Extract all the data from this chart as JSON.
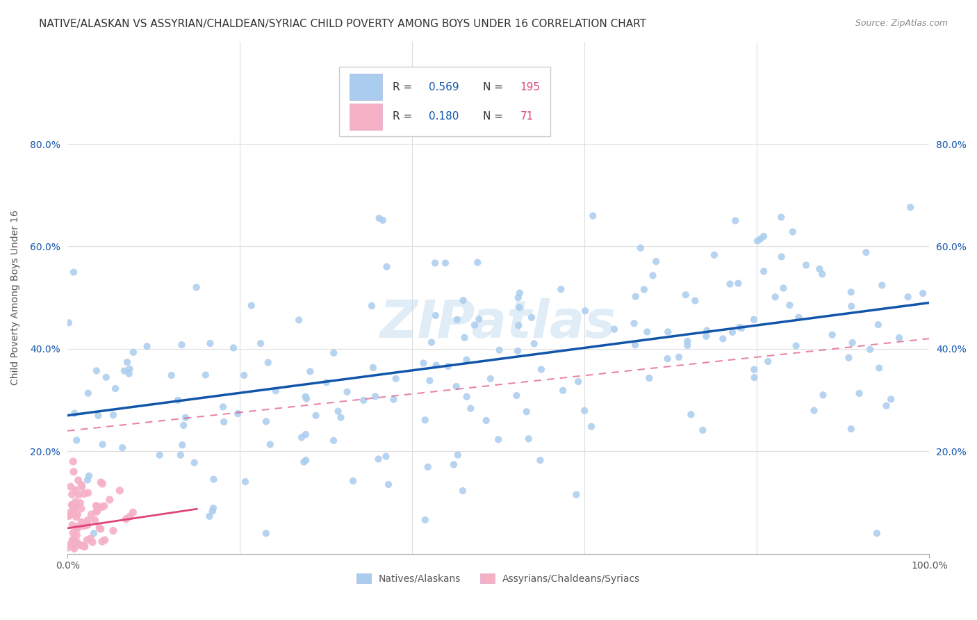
{
  "title": "NATIVE/ALASKAN VS ASSYRIAN/CHALDEAN/SYRIAC CHILD POVERTY AMONG BOYS UNDER 16 CORRELATION CHART",
  "source": "Source: ZipAtlas.com",
  "ylabel": "Child Poverty Among Boys Under 16",
  "xlim": [
    0,
    1.0
  ],
  "ylim": [
    0,
    1.0
  ],
  "ytick_labels": [
    "20.0%",
    "40.0%",
    "60.0%",
    "80.0%"
  ],
  "ytick_positions": [
    0.2,
    0.4,
    0.6,
    0.8
  ],
  "native_color": "#aaccee",
  "native_line_color": "#1155aa",
  "assyrian_color": "#f5b0c5",
  "assyrian_line_color": "#dd4477",
  "native_R": 0.569,
  "native_N": 195,
  "assyrian_R": 0.18,
  "assyrian_N": 71,
  "background_color": "#ffffff",
  "grid_color": "#dddddd",
  "watermark": "ZIPatlas",
  "legend_R_color": "#1155aa",
  "legend_N_color": "#dd4477",
  "title_fontsize": 11,
  "source_fontsize": 9
}
